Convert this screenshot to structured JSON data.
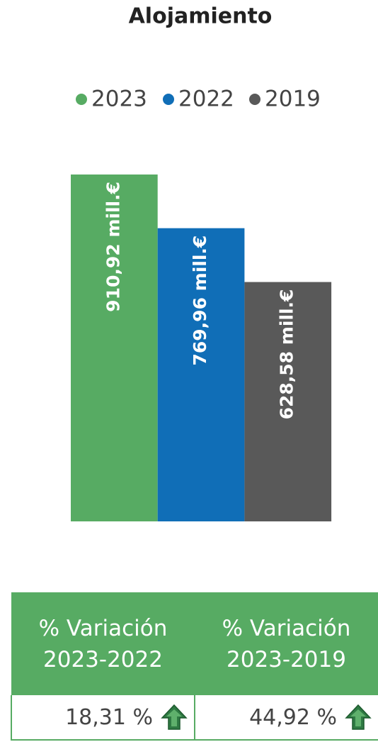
{
  "chart_data": {
    "type": "bar",
    "title": "Alojamiento",
    "categories": [
      null
    ],
    "series": [
      {
        "name": "2023",
        "color": "#57ab63",
        "values": [
          910.92
        ],
        "value_labels": [
          "910,92 mill.€"
        ]
      },
      {
        "name": "2022",
        "color": "#106eb7",
        "values": [
          769.96
        ],
        "value_labels": [
          "769,96 mill.€"
        ]
      },
      {
        "name": "2019",
        "color": "#595959",
        "values": [
          628.58
        ],
        "value_labels": [
          "628,58 mill.€"
        ]
      }
    ]
  },
  "table": {
    "headers": [
      "% Variación 2023-2022",
      "% Variación 2023-2019"
    ],
    "rows": [
      [
        "18,31 %",
        "44,92 %"
      ]
    ]
  }
}
